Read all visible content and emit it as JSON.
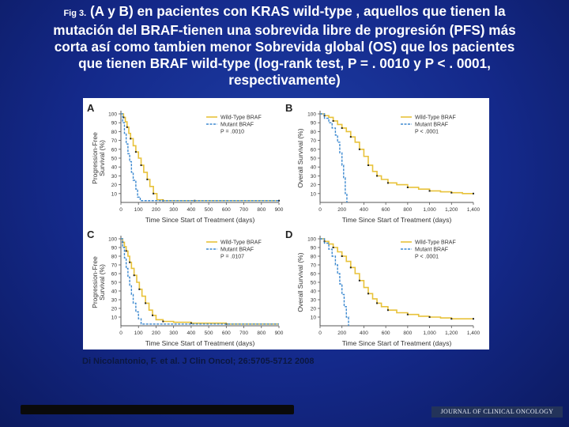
{
  "caption": {
    "fig_label": "Fig 3.",
    "lines": [
      " (A  y  B) en pacientes con KRAS  wild-type , aquellos que tienen la",
      "mutación del BRAF-tienen una sobrevida libre de progresión (PFS) más",
      "corta así como tambien menor Sobrevida global (OS) que los pacientes",
      "que tienen  BRAF  wild-type (log-rank test, P = . 0010  y P < . 0001,",
      "respectivamente)"
    ]
  },
  "citation": "Di Nicolantonio, F. et al. J Clin Oncol; 26:5705-5712 2008",
  "journal_logo": "JOURNAL OF CLINICAL ONCOLOGY",
  "colors": {
    "wild_type": "#e8c23a",
    "mutant": "#3e8ad0",
    "axis": "#555555",
    "censor": "#222222"
  },
  "chart_data": [
    {
      "type": "line",
      "panel": "A",
      "ylabel": "Progression-Free Survival (%)",
      "xlabel": "Time Since Start of Treatment (days)",
      "xlim": [
        0,
        900
      ],
      "ylim": [
        0,
        100
      ],
      "xticks": [
        0,
        100,
        200,
        300,
        400,
        500,
        600,
        700,
        800,
        900
      ],
      "yticks": [
        10,
        20,
        30,
        40,
        50,
        60,
        70,
        80,
        90,
        100
      ],
      "legend": [
        "Wild-Type BRAF",
        "Mutant BRAF"
      ],
      "pvalue": "P = .0010",
      "series": [
        {
          "name": "Wild-Type BRAF",
          "x": [
            0,
            15,
            25,
            35,
            45,
            55,
            70,
            85,
            100,
            115,
            130,
            150,
            165,
            185,
            205,
            240,
            300,
            420,
            550,
            900
          ],
          "y": [
            100,
            96,
            91,
            85,
            78,
            72,
            64,
            57,
            50,
            42,
            34,
            26,
            18,
            10,
            3,
            2,
            2,
            2,
            2,
            2
          ]
        },
        {
          "name": "Mutant BRAF",
          "x": [
            0,
            10,
            20,
            30,
            40,
            50,
            60,
            70,
            85,
            95,
            110,
            900
          ],
          "y": [
            100,
            90,
            78,
            66,
            55,
            46,
            34,
            25,
            15,
            6,
            2,
            2
          ]
        }
      ]
    },
    {
      "type": "line",
      "panel": "B",
      "ylabel": "Overall Survival (%)",
      "xlabel": "Time Since Start of Treatment (days)",
      "xlim": [
        0,
        1400
      ],
      "ylim": [
        0,
        100
      ],
      "xticks": [
        0,
        200,
        400,
        600,
        800,
        1000,
        1200,
        1400
      ],
      "xticklabels": [
        "0",
        "200",
        "400",
        "600",
        "800",
        "1,000",
        "1,200",
        "1,400"
      ],
      "yticks": [
        10,
        20,
        30,
        40,
        50,
        60,
        70,
        80,
        90,
        100
      ],
      "legend": [
        "Wild-Type BRAF",
        "Mutant BRAF"
      ],
      "pvalue": "P < .0001",
      "series": [
        {
          "name": "Wild-Type BRAF",
          "x": [
            0,
            40,
            80,
            120,
            160,
            200,
            240,
            280,
            320,
            360,
            400,
            440,
            480,
            520,
            560,
            620,
            700,
            800,
            900,
            1000,
            1100,
            1200,
            1300,
            1400
          ],
          "y": [
            100,
            98,
            96,
            92,
            88,
            84,
            80,
            74,
            68,
            60,
            52,
            42,
            35,
            30,
            26,
            22,
            20,
            17,
            15,
            13,
            12,
            11,
            10,
            10
          ]
        },
        {
          "name": "Mutant BRAF",
          "x": [
            0,
            40,
            80,
            110,
            140,
            160,
            180,
            200,
            215,
            230,
            245
          ],
          "y": [
            100,
            95,
            90,
            84,
            76,
            68,
            56,
            42,
            28,
            10,
            0
          ]
        }
      ]
    },
    {
      "type": "line",
      "panel": "C",
      "ylabel": "Progression-Free Survival (%)",
      "xlabel": "Time Since Start of Treatment (days)",
      "xlim": [
        0,
        900
      ],
      "ylim": [
        0,
        100
      ],
      "xticks": [
        0,
        100,
        200,
        300,
        400,
        500,
        600,
        700,
        800,
        900
      ],
      "yticks": [
        10,
        20,
        30,
        40,
        50,
        60,
        70,
        80,
        90,
        100
      ],
      "legend": [
        "Wild-Type BRAF",
        "Mutant BRAF"
      ],
      "pvalue": "P = .0107",
      "series": [
        {
          "name": "Wild-Type BRAF",
          "x": [
            0,
            10,
            20,
            30,
            40,
            50,
            60,
            75,
            90,
            105,
            120,
            140,
            160,
            180,
            200,
            240,
            300,
            400,
            500,
            600,
            900
          ],
          "y": [
            100,
            96,
            91,
            86,
            80,
            73,
            66,
            58,
            50,
            42,
            34,
            26,
            18,
            12,
            7,
            5,
            4,
            3,
            3,
            2,
            2
          ]
        },
        {
          "name": "Mutant BRAF",
          "x": [
            0,
            10,
            20,
            30,
            40,
            50,
            60,
            70,
            85,
            100,
            115,
            900
          ],
          "y": [
            100,
            90,
            78,
            66,
            56,
            46,
            36,
            26,
            16,
            8,
            2,
            2
          ]
        }
      ]
    },
    {
      "type": "line",
      "panel": "D",
      "ylabel": "Overall Survival (%)",
      "xlabel": "Time Since Start of Treatment (days)",
      "xlim": [
        0,
        1400
      ],
      "ylim": [
        0,
        100
      ],
      "xticks": [
        0,
        200,
        400,
        600,
        800,
        1000,
        1200,
        1400
      ],
      "xticklabels": [
        "0",
        "200",
        "400",
        "600",
        "800",
        "1,000",
        "1,200",
        "1,400"
      ],
      "yticks": [
        10,
        20,
        30,
        40,
        50,
        60,
        70,
        80,
        90,
        100
      ],
      "legend": [
        "Wild-Type BRAF",
        "Mutant BRAF"
      ],
      "pvalue": "P < .0001",
      "series": [
        {
          "name": "Wild-Type BRAF",
          "x": [
            0,
            40,
            80,
            120,
            160,
            200,
            240,
            280,
            320,
            360,
            400,
            440,
            480,
            520,
            560,
            620,
            700,
            800,
            900,
            1000,
            1100,
            1200,
            1300,
            1400
          ],
          "y": [
            100,
            97,
            94,
            90,
            85,
            80,
            74,
            67,
            60,
            52,
            44,
            37,
            31,
            26,
            22,
            18,
            15,
            13,
            11,
            10,
            9,
            8,
            8,
            8
          ]
        },
        {
          "name": "Mutant BRAF",
          "x": [
            0,
            40,
            80,
            110,
            140,
            160,
            180,
            200,
            220,
            240,
            260
          ],
          "y": [
            100,
            95,
            88,
            80,
            70,
            60,
            48,
            36,
            22,
            10,
            0
          ]
        }
      ]
    }
  ]
}
